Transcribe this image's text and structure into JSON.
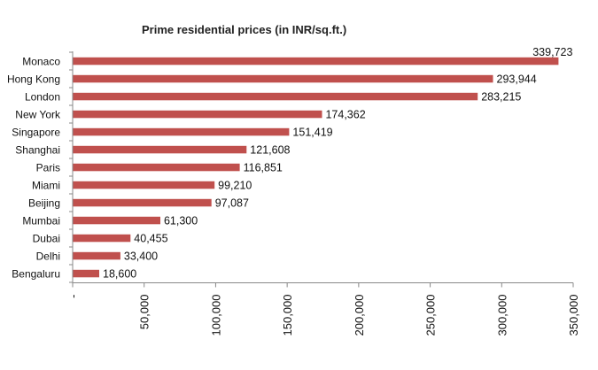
{
  "chart_data": {
    "type": "bar",
    "orientation": "horizontal",
    "title": "Prime residential prices (in INR/sq.ft.)",
    "xlabel": "",
    "ylabel": "",
    "categories": [
      "Monaco",
      "Hong Kong",
      "London",
      "New York",
      "Singapore",
      "Shanghai",
      "Paris",
      "Miami",
      "Beijing",
      "Mumbai",
      "Dubai",
      "Delhi",
      "Bengaluru"
    ],
    "values": [
      339723,
      293944,
      283215,
      174362,
      151419,
      121608,
      116851,
      99210,
      97087,
      61300,
      40455,
      33400,
      18600
    ],
    "value_labels": [
      "339,723",
      "293,944",
      "283,215",
      "174,362",
      "151,419",
      "121,608",
      "116,851",
      "99,210",
      "97,087",
      "61,300",
      "40,455",
      "33,400",
      "18,600"
    ],
    "x_ticks": [
      0,
      50000,
      100000,
      150000,
      200000,
      250000,
      300000,
      350000
    ],
    "x_tick_labels": [
      "-",
      "50,000",
      "100,000",
      "150,000",
      "200,000",
      "250,000",
      "300,000",
      "350,000"
    ],
    "xlim": [
      0,
      350000
    ],
    "grid": false,
    "legend": "none",
    "bar_color": "#C0504D"
  }
}
